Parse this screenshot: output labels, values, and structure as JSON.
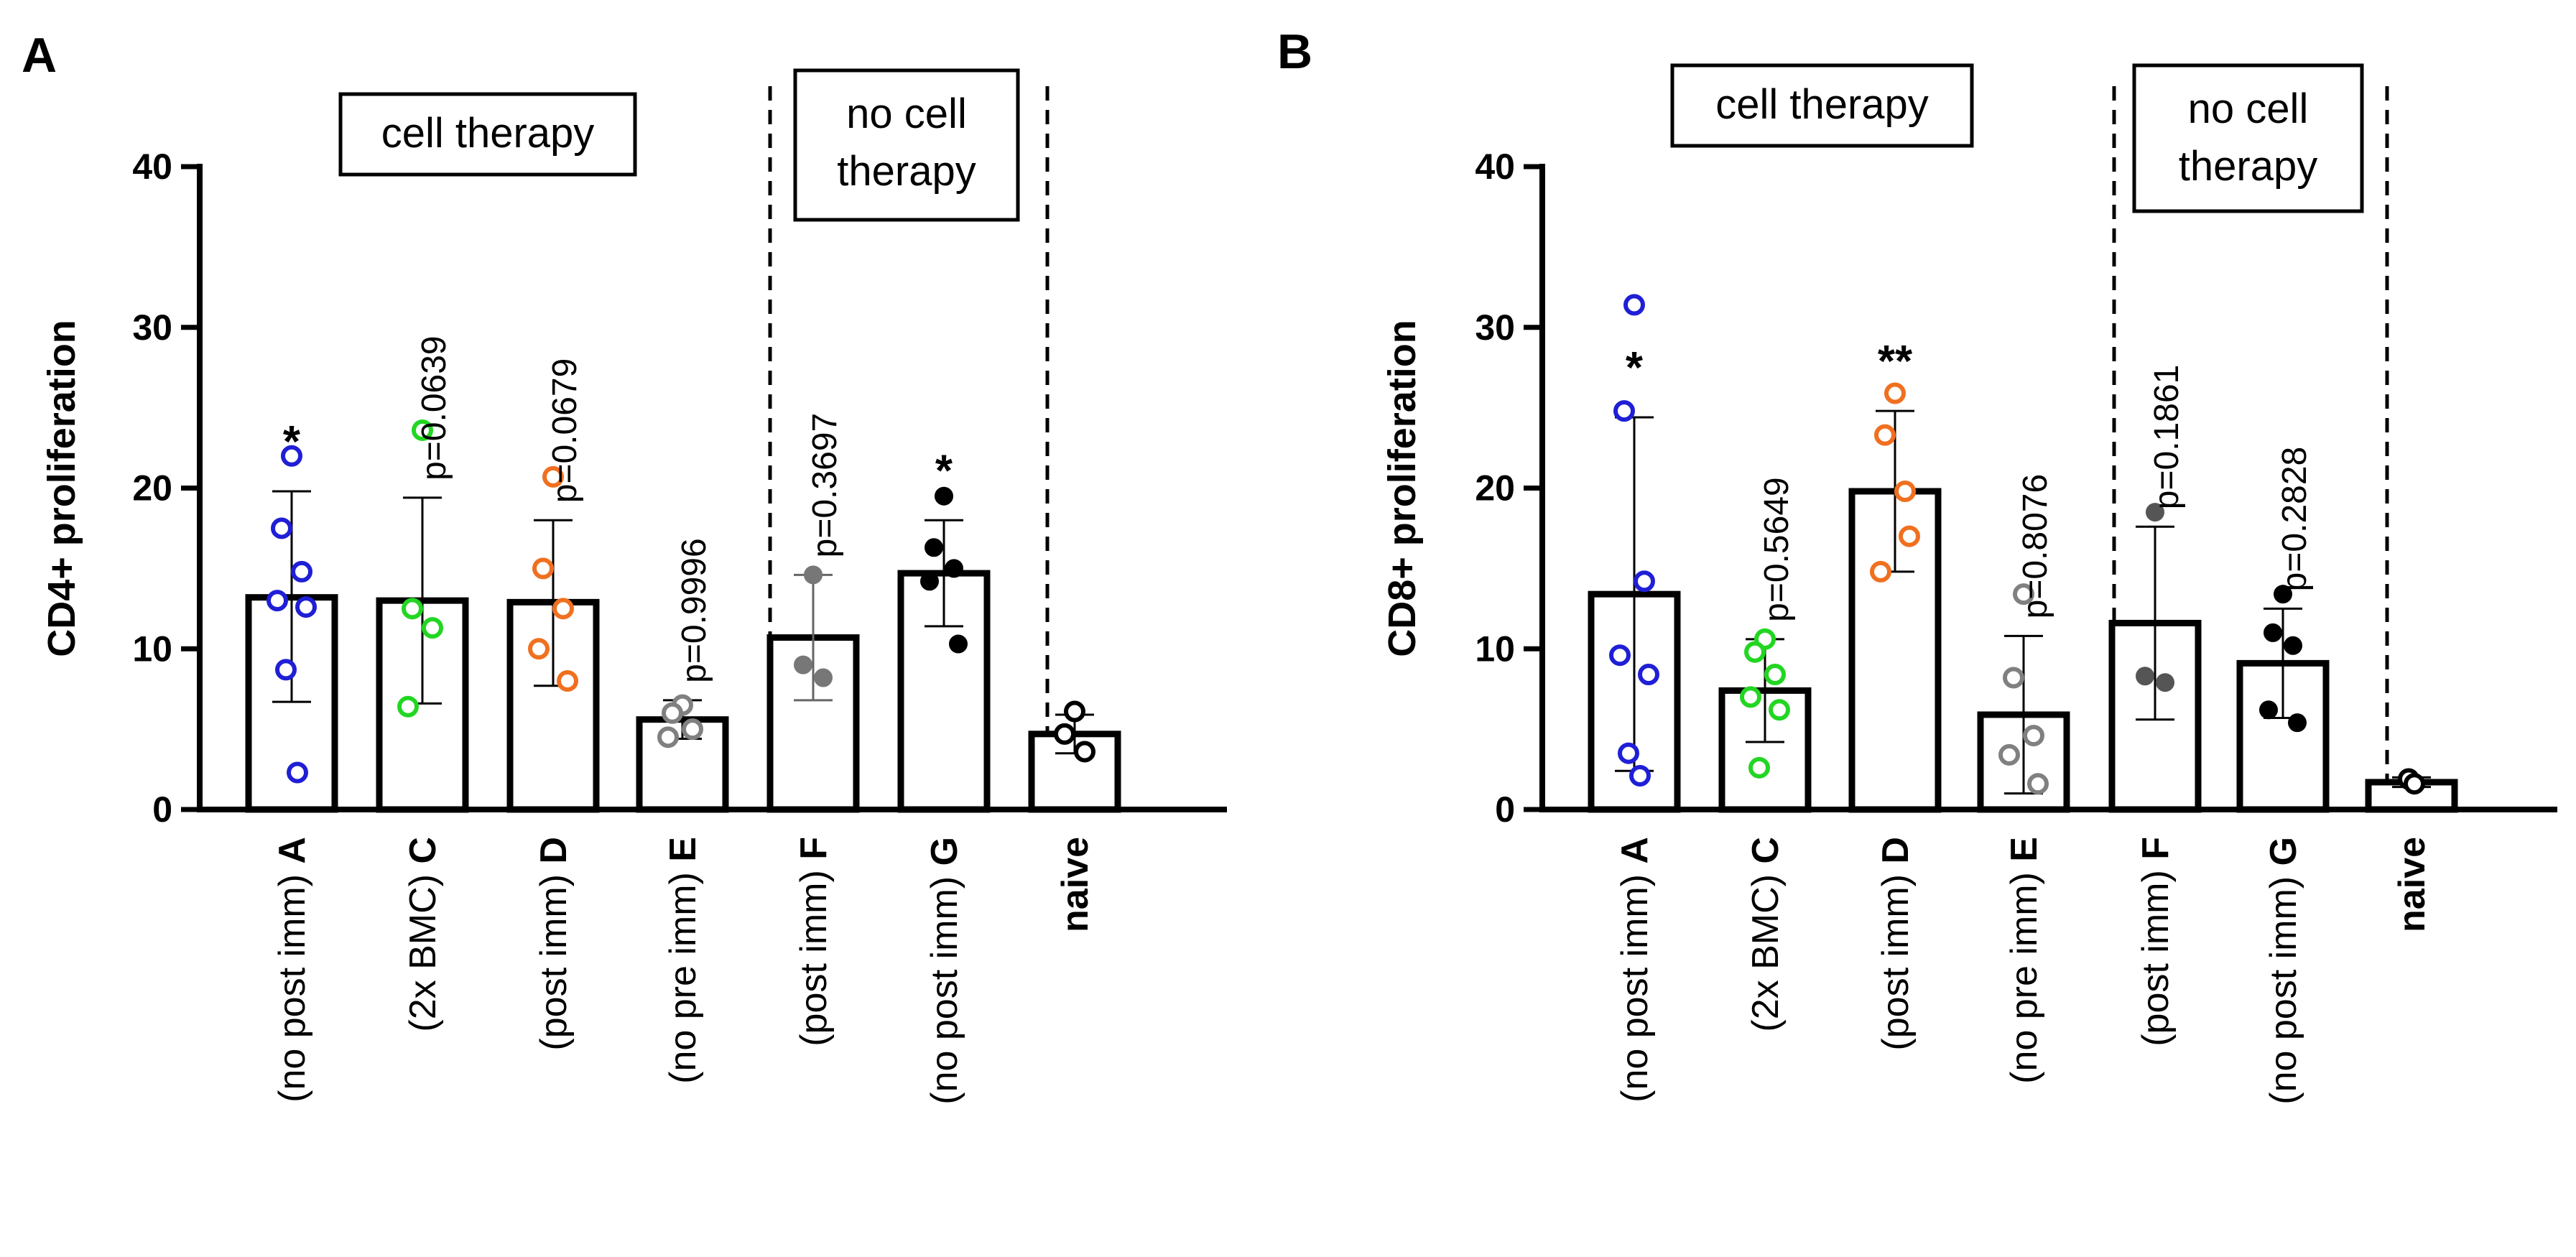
{
  "chart_data": [
    {
      "type": "bar",
      "panel": "A",
      "title": "",
      "xlabel": "",
      "ylabel": "CD4+ proliferation",
      "ylim": [
        0,
        40
      ],
      "yticks": [
        0,
        10,
        20,
        30,
        40
      ],
      "groups": [
        {
          "label": "cell therapy",
          "categories": [
            "A",
            "C",
            "D",
            "E"
          ]
        },
        {
          "label": "no cell therapy",
          "categories": [
            "F",
            "G"
          ]
        }
      ],
      "categories": [
        {
          "id": "A",
          "sub": "(no post imm)",
          "value": 13.2,
          "sd_low": 6.7,
          "sd_high": 19.8,
          "color": "#1f1fd6",
          "filled": false,
          "points": [
            22.0,
            17.5,
            14.8,
            13.0,
            12.6,
            8.7,
            2.3
          ],
          "annotation": "*"
        },
        {
          "id": "C",
          "sub": "(2x BMC)",
          "value": 13.0,
          "sd_low": 6.6,
          "sd_high": 19.4,
          "color": "#22d622",
          "filled": false,
          "points": [
            23.6,
            12.5,
            11.3,
            6.4
          ],
          "annotation": "p=0.0639"
        },
        {
          "id": "D",
          "sub": "(post imm)",
          "value": 12.9,
          "sd_low": 7.7,
          "sd_high": 18.0,
          "color": "#f07020",
          "filled": false,
          "points": [
            20.7,
            15.0,
            12.5,
            10.0,
            8.0
          ],
          "annotation": "p=0.0679"
        },
        {
          "id": "E",
          "sub": "(no pre imm)",
          "value": 5.6,
          "sd_low": 4.4,
          "sd_high": 6.8,
          "color": "#808080",
          "filled": false,
          "points": [
            6.5,
            6.0,
            5.0,
            4.5
          ],
          "annotation": "p=0.9996"
        },
        {
          "id": "F",
          "sub": "(post imm)",
          "value": 10.7,
          "sd_low": 6.8,
          "sd_high": 14.6,
          "color": "#777777",
          "filled": true,
          "points": [
            14.6,
            9.0,
            8.2
          ],
          "annotation": "p=0.3697"
        },
        {
          "id": "G",
          "sub": "(no post imm)",
          "value": 14.7,
          "sd_low": 11.4,
          "sd_high": 18.0,
          "color": "#000000",
          "filled": true,
          "points": [
            19.5,
            16.3,
            15.0,
            14.2,
            10.3
          ],
          "annotation": "*"
        },
        {
          "id": "naive",
          "sub": "",
          "value": 4.7,
          "sd_low": 3.5,
          "sd_high": 5.9,
          "color": "#000000",
          "filled": false,
          "points": [
            6.1,
            4.7,
            3.6
          ],
          "annotation": ""
        }
      ]
    },
    {
      "type": "bar",
      "panel": "B",
      "title": "",
      "xlabel": "",
      "ylabel": "CD8+ proliferation",
      "ylim": [
        0,
        40
      ],
      "yticks": [
        0,
        10,
        20,
        30,
        40
      ],
      "groups": [
        {
          "label": "cell therapy",
          "categories": [
            "A",
            "C",
            "D",
            "E"
          ]
        },
        {
          "label": "no cell therapy",
          "categories": [
            "F",
            "G"
          ]
        }
      ],
      "categories": [
        {
          "id": "A",
          "sub": "(no post imm)",
          "value": 13.4,
          "sd_low": 2.4,
          "sd_high": 24.4,
          "color": "#1f1fd6",
          "filled": false,
          "points": [
            31.4,
            24.8,
            14.2,
            9.6,
            8.4,
            3.5,
            2.1
          ],
          "annotation": "*"
        },
        {
          "id": "C",
          "sub": "(2x BMC)",
          "value": 7.4,
          "sd_low": 4.2,
          "sd_high": 10.6,
          "color": "#22d622",
          "filled": false,
          "points": [
            10.6,
            9.8,
            8.4,
            7.0,
            6.2,
            2.6
          ],
          "annotation": "p=0.5649"
        },
        {
          "id": "D",
          "sub": "(post imm)",
          "value": 19.8,
          "sd_low": 14.8,
          "sd_high": 24.8,
          "color": "#f07020",
          "filled": false,
          "points": [
            25.9,
            23.3,
            19.8,
            14.8,
            17.0
          ],
          "annotation": "**"
        },
        {
          "id": "E",
          "sub": "(no pre imm)",
          "value": 5.9,
          "sd_low": 1.0,
          "sd_high": 10.8,
          "color": "#808080",
          "filled": false,
          "points": [
            13.4,
            8.2,
            4.6,
            3.4,
            1.6
          ],
          "annotation": "p=0.8076"
        },
        {
          "id": "F",
          "sub": "(post imm)",
          "value": 11.6,
          "sd_low": 5.6,
          "sd_high": 17.6,
          "color": "#555555",
          "filled": true,
          "points": [
            18.5,
            8.3,
            7.9
          ],
          "annotation": "p=0.1861"
        },
        {
          "id": "G",
          "sub": "(no post imm)",
          "value": 9.1,
          "sd_low": 5.7,
          "sd_high": 12.5,
          "color": "#000000",
          "filled": true,
          "points": [
            13.4,
            11.0,
            10.2,
            6.2,
            5.4
          ],
          "annotation": "p=0.2828"
        },
        {
          "id": "naive",
          "sub": "",
          "value": 1.7,
          "sd_low": 1.4,
          "sd_high": 2.0,
          "color": "#000000",
          "filled": false,
          "points": [
            1.9,
            1.6
          ],
          "annotation": ""
        }
      ]
    }
  ],
  "labels": {
    "box_cell_therapy": "cell therapy",
    "box_no_cell_l1": "no cell",
    "box_no_cell_l2": "therapy"
  }
}
